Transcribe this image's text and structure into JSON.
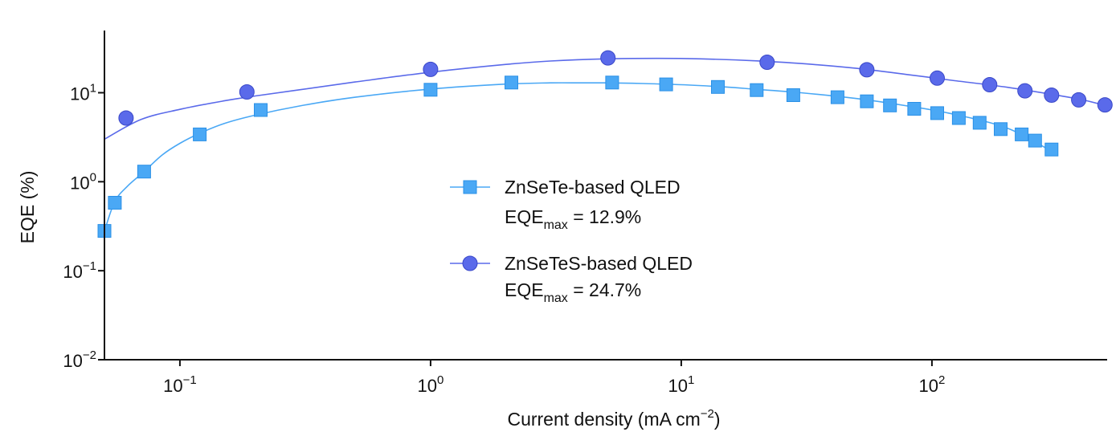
{
  "chart_data": {
    "type": "scatter",
    "title": "",
    "xlabel": "Current density (mA cm",
    "xlabel_unit_exp": "−2",
    "xlabel_close": ")",
    "ylabel": "EQE (%)",
    "xscale": "log",
    "yscale": "log",
    "xlim": [
      0.05,
      500
    ],
    "ylim": [
      0.01,
      50
    ],
    "legend_position": "center",
    "x_ticks": [
      {
        "value": 0.1,
        "base": "10",
        "exp": "−1"
      },
      {
        "value": 1,
        "base": "10",
        "exp": "0"
      },
      {
        "value": 10,
        "base": "10",
        "exp": "1"
      },
      {
        "value": 100,
        "base": "10",
        "exp": "2"
      }
    ],
    "y_ticks": [
      {
        "value": 0.01,
        "base": "10",
        "exp": "−2"
      },
      {
        "value": 0.1,
        "base": "10",
        "exp": "−1"
      },
      {
        "value": 1,
        "base": "10",
        "exp": "0"
      },
      {
        "value": 10,
        "base": "10",
        "exp": "1"
      }
    ],
    "series": [
      {
        "name": "ZnSeTe-based QLED",
        "eqe_max_label": "EQE",
        "eqe_max_sub": "max",
        "eqe_max_value": " = 12.9%",
        "color": "#4aa8f5",
        "stroke": "#2b90e6",
        "marker": "square",
        "x": [
          0.05,
          0.055,
          0.072,
          0.12,
          0.21,
          1.0,
          2.1,
          5.3,
          8.7,
          14.0,
          20.0,
          28.0,
          42.0,
          55.0,
          68.0,
          85.0,
          105.0,
          128.0,
          155.0,
          188.0,
          228.0,
          258.0,
          300.0
        ],
        "y": [
          0.28,
          0.58,
          1.3,
          3.4,
          6.4,
          10.8,
          13.0,
          13.0,
          12.4,
          11.6,
          10.7,
          9.4,
          8.9,
          8.0,
          7.2,
          6.6,
          5.9,
          5.2,
          4.6,
          3.9,
          3.4,
          2.9,
          2.3
        ],
        "fit_x": [
          0.05,
          0.055,
          0.062,
          0.072,
          0.085,
          0.1,
          0.12,
          0.15,
          0.2,
          0.3,
          0.5,
          1.0,
          2.0,
          3.0,
          4.0,
          5.0,
          7.0,
          10.0,
          15.0,
          20.0,
          30.0,
          50.0,
          80.0,
          120.0,
          200.0,
          300.0
        ],
        "fit_y": [
          0.28,
          0.6,
          0.9,
          1.3,
          2.0,
          2.7,
          3.5,
          4.5,
          5.6,
          7.1,
          8.9,
          11.0,
          12.5,
          12.9,
          12.9,
          12.9,
          12.7,
          12.3,
          11.6,
          10.9,
          10.0,
          8.6,
          7.1,
          5.8,
          4.0,
          2.2
        ]
      },
      {
        "name": "ZnSeTeS-based QLED",
        "eqe_max_label": "EQE",
        "eqe_max_sub": "max",
        "eqe_max_value": " = 24.7%",
        "color": "#5a6aea",
        "stroke": "#3a48c8",
        "marker": "circle",
        "x": [
          0.061,
          0.185,
          1.0,
          5.1,
          22.0,
          55.0,
          105.0,
          170.0,
          235.0,
          300.0,
          385.0,
          490.0
        ],
        "y": [
          5.2,
          10.2,
          18.3,
          24.6,
          22.0,
          18.1,
          14.6,
          12.3,
          10.5,
          9.4,
          8.3,
          7.3
        ],
        "fit_x": [
          0.05,
          0.07,
          0.1,
          0.15,
          0.2,
          0.3,
          0.5,
          1.0,
          2.0,
          3.0,
          5.0,
          8.0,
          12.0,
          20.0,
          30.0,
          50.0,
          80.0,
          120.0,
          200.0,
          300.0,
          400.0,
          500.0
        ],
        "fit_y": [
          3.0,
          5.0,
          6.5,
          8.1,
          9.2,
          10.8,
          13.2,
          17.0,
          20.8,
          22.7,
          24.0,
          24.3,
          24.0,
          22.8,
          21.3,
          18.8,
          16.0,
          13.8,
          11.5,
          9.6,
          8.3,
          7.1
        ]
      }
    ]
  }
}
